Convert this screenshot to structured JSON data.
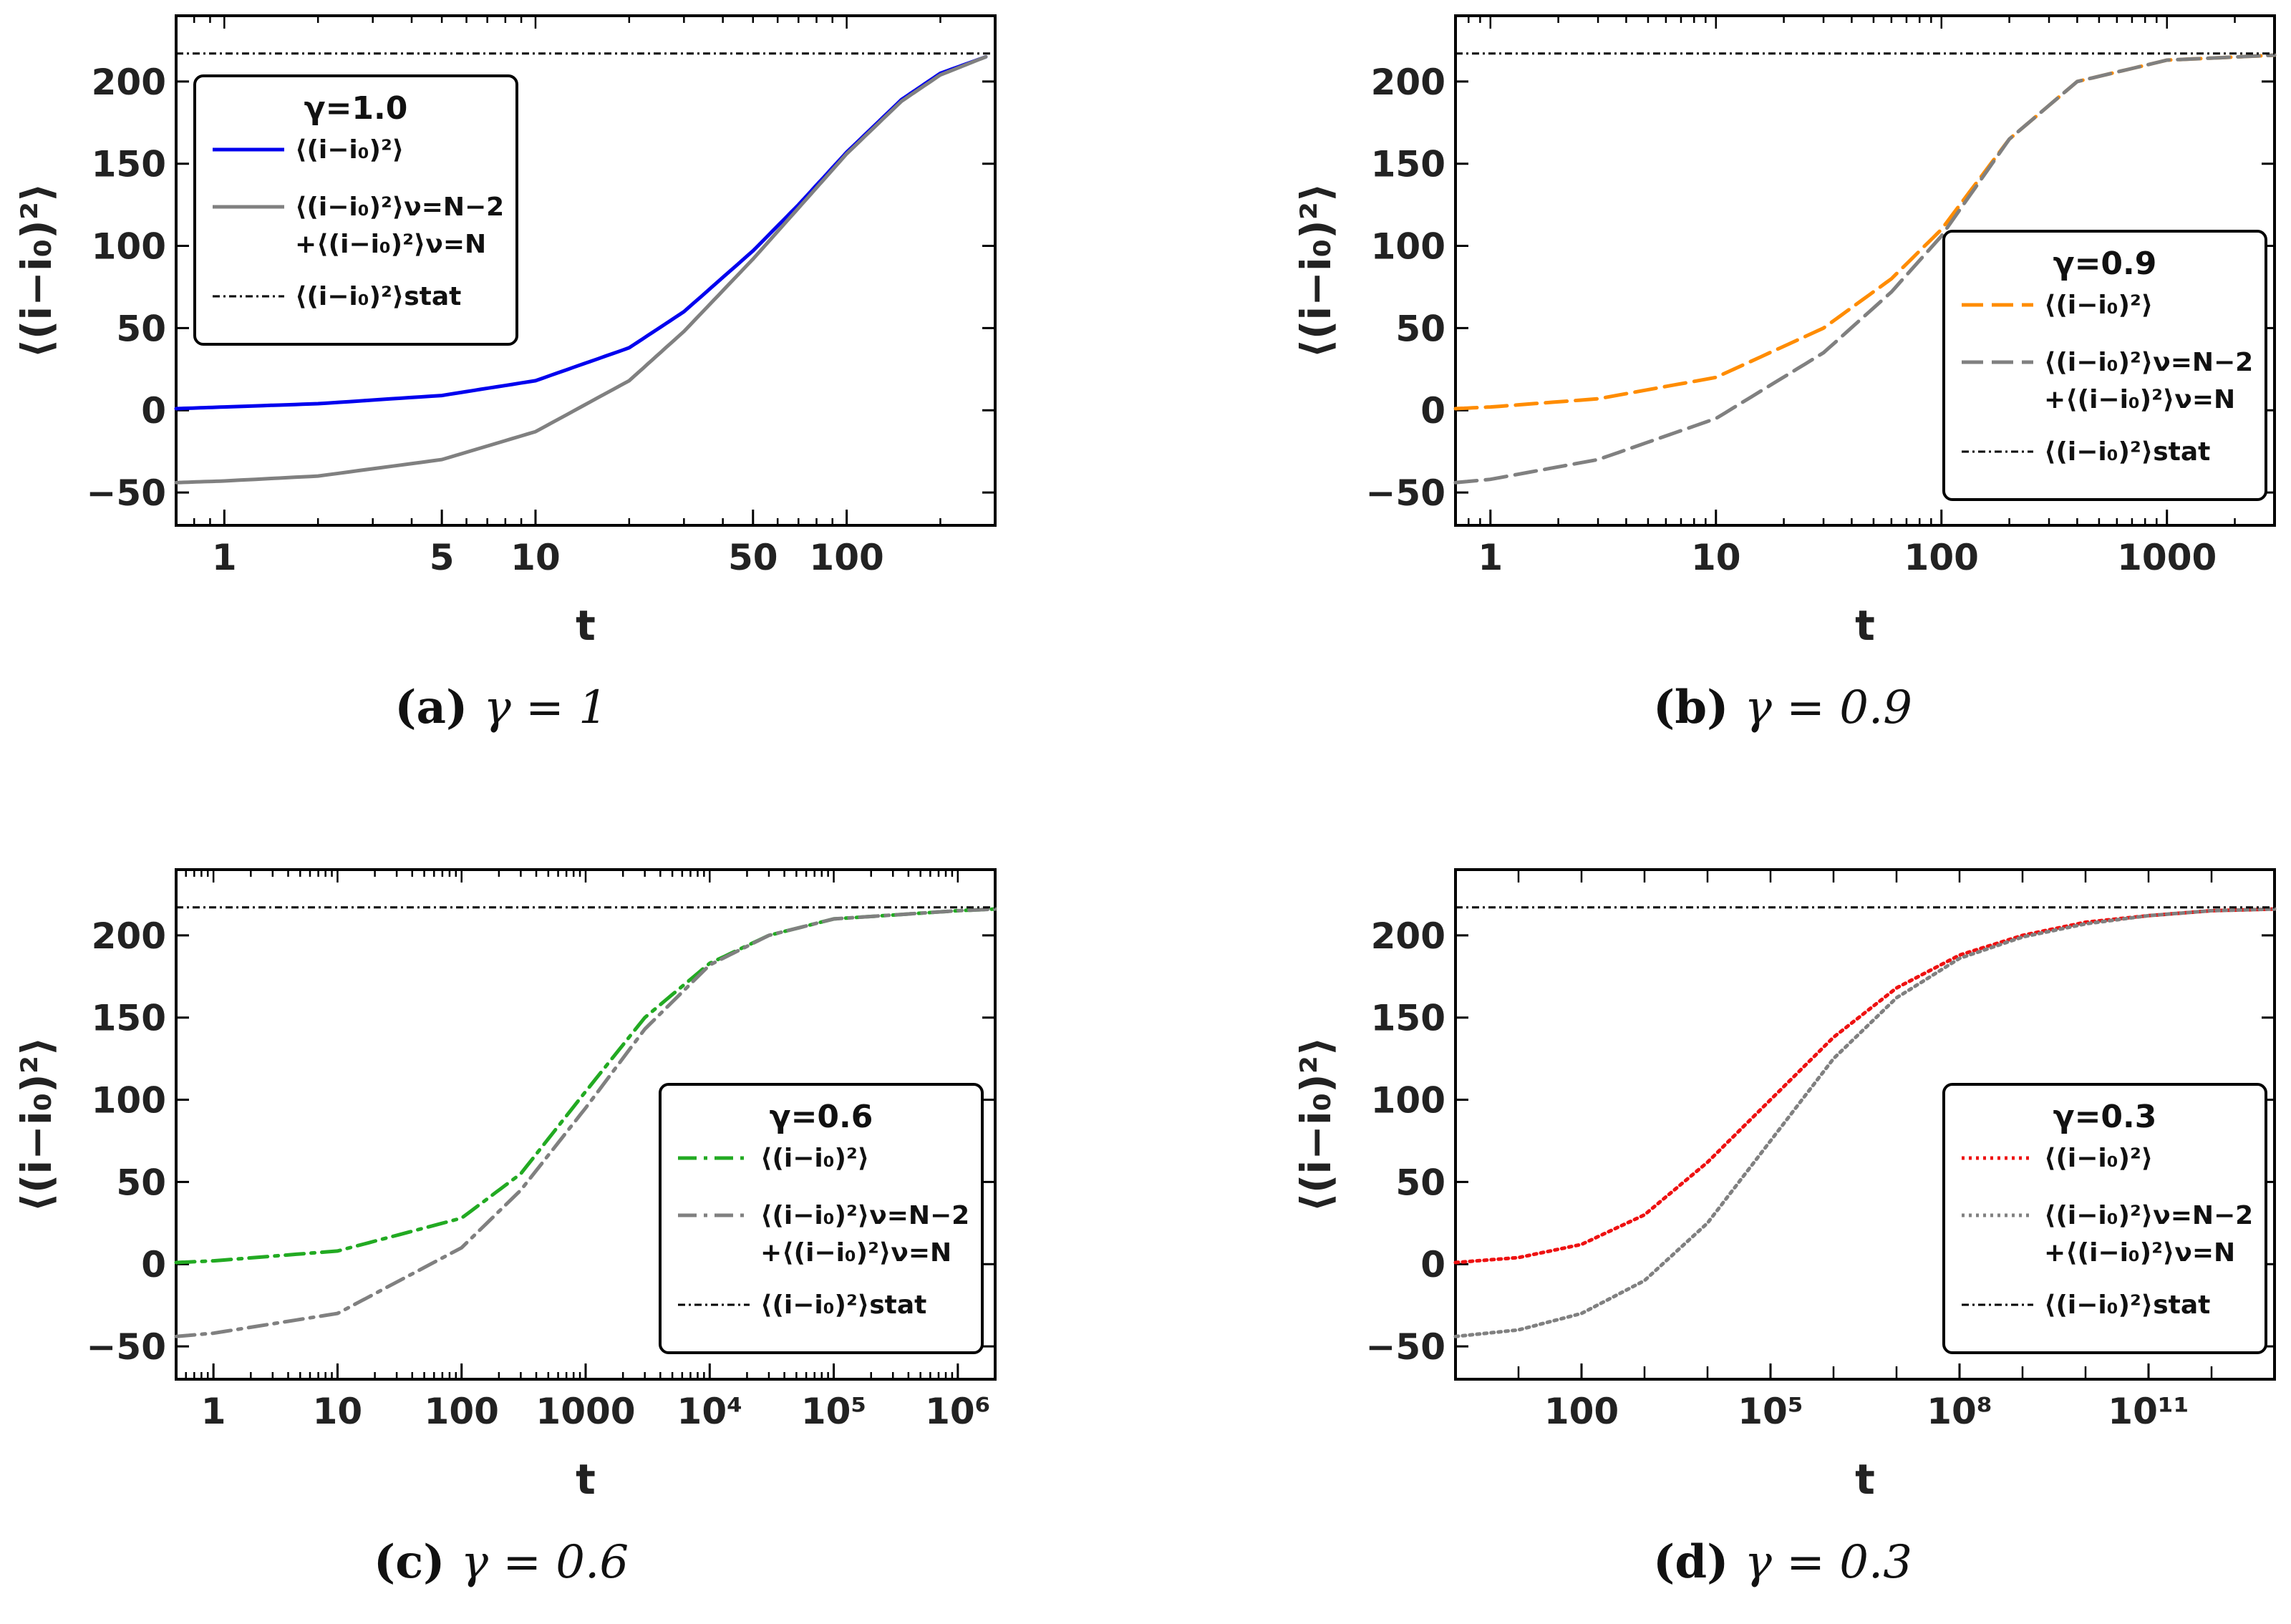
{
  "chart_data": [
    {
      "type": "line",
      "caption_letter": "(a)",
      "caption_text": "γ = 1",
      "xlabel": "t",
      "ylabel": "⟨(i−i₀)²⟩",
      "xscale": "log",
      "xlim": [
        0.7,
        300
      ],
      "ylim": [
        -70,
        240
      ],
      "xticks": [
        {
          "value": 1,
          "label": "1"
        },
        {
          "value": 5,
          "label": "5"
        },
        {
          "value": 10,
          "label": "10"
        },
        {
          "value": 50,
          "label": "50"
        },
        {
          "value": 100,
          "label": "100"
        }
      ],
      "yticks": [
        -50,
        0,
        50,
        100,
        150,
        200
      ],
      "stat_value": 217,
      "legend": {
        "position": "top-left",
        "title": "γ=1.0",
        "entries": [
          {
            "text": "⟨(i−i₀)²⟩",
            "line2": ""
          },
          {
            "text": "⟨(i−i₀)²⟩ν=N−2",
            "line2": "+⟨(i−i₀)²⟩ν=N"
          },
          {
            "text": "⟨(i−i₀)²⟩stat",
            "line2": ""
          }
        ]
      },
      "series": [
        {
          "name": "⟨(i−i₀)²⟩",
          "color": "#0000ee",
          "style": "solid",
          "x": [
            0.7,
            1,
            2,
            5,
            10,
            20,
            30,
            50,
            70,
            100,
            150,
            200,
            280
          ],
          "y": [
            1,
            2,
            4,
            9,
            18,
            38,
            60,
            97,
            125,
            157,
            189,
            205,
            215
          ]
        },
        {
          "name": "⟨(i−i₀)²⟩ν=N−2 +⟨(i−i₀)²⟩ν=N",
          "color": "#808080",
          "style": "solid",
          "x": [
            0.7,
            1,
            2,
            5,
            10,
            20,
            30,
            50,
            70,
            100,
            150,
            200,
            280
          ],
          "y": [
            -44,
            -43,
            -40,
            -30,
            -13,
            18,
            48,
            92,
            123,
            156,
            188,
            204,
            215
          ]
        },
        {
          "name": "⟨(i−i₀)²⟩stat",
          "color": "#000000",
          "style": "dashdot",
          "x": [
            0.7,
            300
          ],
          "y": [
            217,
            217
          ]
        }
      ]
    },
    {
      "type": "line",
      "caption_letter": "(b)",
      "caption_text": "γ = 0.9",
      "xlabel": "t",
      "ylabel": "⟨(i−i₀)²⟩",
      "xscale": "log",
      "xlim": [
        0.7,
        3000
      ],
      "ylim": [
        -70,
        240
      ],
      "xticks": [
        {
          "value": 1,
          "label": "1"
        },
        {
          "value": 10,
          "label": "10"
        },
        {
          "value": 100,
          "label": "100"
        },
        {
          "value": 1000,
          "label": "1000"
        }
      ],
      "yticks": [
        -50,
        0,
        50,
        100,
        150,
        200
      ],
      "stat_value": 217,
      "legend": {
        "position": "bottom-right",
        "title": "γ=0.9",
        "entries": [
          {
            "text": "⟨(i−i₀)²⟩",
            "line2": ""
          },
          {
            "text": "⟨(i−i₀)²⟩ν=N−2",
            "line2": "+⟨(i−i₀)²⟩ν=N"
          },
          {
            "text": "⟨(i−i₀)²⟩stat",
            "line2": ""
          }
        ]
      },
      "series": [
        {
          "name": "⟨(i−i₀)²⟩",
          "color": "#ff8c00",
          "style": "dashed",
          "x": [
            0.7,
            1,
            3,
            10,
            30,
            60,
            100,
            200,
            400,
            1000,
            3000
          ],
          "y": [
            1,
            2,
            7,
            20,
            50,
            80,
            110,
            165,
            200,
            213,
            216
          ]
        },
        {
          "name": "⟨(i−i₀)²⟩ν=N−2 +⟨(i−i₀)²⟩ν=N",
          "color": "#808080",
          "style": "dashed",
          "x": [
            0.7,
            1,
            3,
            10,
            30,
            60,
            100,
            200,
            400,
            1000,
            3000
          ],
          "y": [
            -44,
            -42,
            -30,
            -5,
            35,
            72,
            106,
            165,
            200,
            213,
            216
          ]
        },
        {
          "name": "⟨(i−i₀)²⟩stat",
          "color": "#000000",
          "style": "dashdot",
          "x": [
            0.7,
            3000
          ],
          "y": [
            217,
            217
          ]
        }
      ]
    },
    {
      "type": "line",
      "caption_letter": "(c)",
      "caption_text": "γ = 0.6",
      "xlabel": "t",
      "ylabel": "⟨(i−i₀)²⟩",
      "xscale": "log",
      "xlim": [
        0.5,
        2000000
      ],
      "ylim": [
        -70,
        240
      ],
      "xticks": [
        {
          "value": 1,
          "label": "1"
        },
        {
          "value": 10,
          "label": "10"
        },
        {
          "value": 100,
          "label": "100"
        },
        {
          "value": 1000,
          "label": "1000"
        },
        {
          "value": 10000,
          "label": "10⁴"
        },
        {
          "value": 100000,
          "label": "10⁵"
        },
        {
          "value": 1000000,
          "label": "10⁶"
        }
      ],
      "yticks": [
        -50,
        0,
        50,
        100,
        150,
        200
      ],
      "stat_value": 217,
      "legend": {
        "position": "bottom-right",
        "title": "γ=0.6",
        "entries": [
          {
            "text": "⟨(i−i₀)²⟩",
            "line2": ""
          },
          {
            "text": "⟨(i−i₀)²⟩ν=N−2",
            "line2": "+⟨(i−i₀)²⟩ν=N"
          },
          {
            "text": "⟨(i−i₀)²⟩stat",
            "line2": ""
          }
        ]
      },
      "series": [
        {
          "name": "⟨(i−i₀)²⟩",
          "color": "#22aa22",
          "style": "dashdot",
          "x": [
            0.5,
            1,
            10,
            100,
            300,
            1000,
            3000,
            10000,
            30000,
            100000,
            1000000,
            2000000
          ],
          "y": [
            1,
            2,
            8,
            28,
            55,
            105,
            150,
            183,
            200,
            210,
            215,
            216
          ]
        },
        {
          "name": "⟨(i−i₀)²⟩ν=N−2 +⟨(i−i₀)²⟩ν=N",
          "color": "#808080",
          "style": "dashdot",
          "x": [
            0.5,
            1,
            10,
            100,
            300,
            1000,
            3000,
            10000,
            30000,
            100000,
            1000000,
            2000000
          ],
          "y": [
            -44,
            -42,
            -30,
            10,
            45,
            95,
            143,
            182,
            200,
            210,
            215,
            216
          ]
        },
        {
          "name": "⟨(i−i₀)²⟩stat",
          "color": "#000000",
          "style": "dashdot",
          "x": [
            0.5,
            2000000
          ],
          "y": [
            217,
            217
          ]
        }
      ]
    },
    {
      "type": "line",
      "caption_letter": "(d)",
      "caption_text": "γ = 0.3",
      "xlabel": "t",
      "ylabel": "⟨(i−i₀)²⟩",
      "xscale": "log",
      "xlim": [
        1,
        10000000000000
      ],
      "ylim": [
        -70,
        240
      ],
      "xticks": [
        {
          "value": 100,
          "label": "100"
        },
        {
          "value": 100000,
          "label": "10⁵"
        },
        {
          "value": 100000000,
          "label": "10⁸"
        },
        {
          "value": 100000000000,
          "label": "10¹¹"
        }
      ],
      "yticks": [
        -50,
        0,
        50,
        100,
        150,
        200
      ],
      "stat_value": 217,
      "legend": {
        "position": "bottom-right",
        "title": "γ=0.3",
        "entries": [
          {
            "text": "⟨(i−i₀)²⟩",
            "line2": ""
          },
          {
            "text": "⟨(i−i₀)²⟩ν=N−2",
            "line2": "+⟨(i−i₀)²⟩ν=N"
          },
          {
            "text": "⟨(i−i₀)²⟩stat",
            "line2": ""
          }
        ]
      },
      "series": [
        {
          "name": "⟨(i−i₀)²⟩",
          "color": "#ee1111",
          "style": "dotted",
          "x": [
            1,
            10,
            100,
            1000,
            10000,
            100000,
            1000000,
            10000000,
            100000000,
            1000000000,
            10000000000,
            100000000000,
            1000000000000,
            10000000000000
          ],
          "y": [
            1,
            4,
            12,
            30,
            62,
            100,
            138,
            168,
            188,
            200,
            208,
            212,
            215,
            216
          ]
        },
        {
          "name": "⟨(i−i₀)²⟩ν=N−2 +⟨(i−i₀)²⟩ν=N",
          "color": "#808080",
          "style": "dotted",
          "x": [
            1,
            10,
            100,
            1000,
            10000,
            100000,
            1000000,
            10000000,
            100000000,
            1000000000,
            10000000000,
            100000000000,
            1000000000000,
            10000000000000
          ],
          "y": [
            -44,
            -40,
            -30,
            -10,
            25,
            75,
            125,
            162,
            186,
            199,
            207,
            212,
            215,
            216
          ]
        },
        {
          "name": "⟨(i−i₀)²⟩stat",
          "color": "#000000",
          "style": "dashdot",
          "x": [
            1,
            10000000000000
          ],
          "y": [
            217,
            217
          ]
        }
      ]
    }
  ]
}
